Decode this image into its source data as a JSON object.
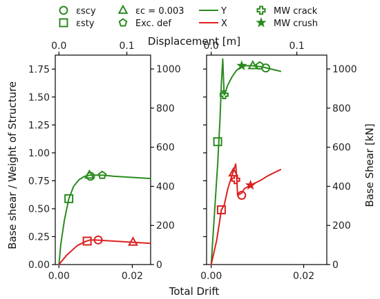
{
  "chart_data": {
    "type": "line",
    "colors": {
      "Y": "#2a8a1f",
      "X": "#dd1f1f",
      "axes": "#000000"
    },
    "legend": {
      "placement": "top",
      "items": [
        {
          "label": "εscy",
          "kind": "marker",
          "marker": "circle"
        },
        {
          "label": "εc = 0.003",
          "kind": "marker",
          "marker": "triangle"
        },
        {
          "label": "Y",
          "kind": "line",
          "series": "Y"
        },
        {
          "label": "MW crack",
          "kind": "marker",
          "marker": "plus"
        },
        {
          "label": "εsty",
          "kind": "marker",
          "marker": "square"
        },
        {
          "label": "Exc. def",
          "kind": "marker",
          "marker": "pentagon"
        },
        {
          "label": "X",
          "kind": "line",
          "series": "X"
        },
        {
          "label": "MW crush",
          "kind": "marker",
          "marker": "star"
        }
      ]
    },
    "shared": {
      "xlabel_bottom": "Total Drift",
      "xlabel_top": "Displacement [m]",
      "ylabel_left": "Base shear / Weight of Structure",
      "ylabel_right": "Base Shear [kN]"
    },
    "panels": [
      {
        "xlim": [
          -0.001,
          0.025
        ],
        "ylim": [
          0,
          1.875
        ],
        "x_ticks": [
          0.0,
          0.02
        ],
        "x_tick_labels": [
          "0.00",
          "0.02"
        ],
        "y_ticks": [
          0.0,
          0.25,
          0.5,
          0.75,
          1.0,
          1.25,
          1.5,
          1.75
        ],
        "y_tick_labels": [
          "0.00",
          "0.25",
          "0.50",
          "0.75",
          "1.00",
          "1.25",
          "1.50",
          "1.75"
        ],
        "top_xlim": [
          -0.0054,
          0.135
        ],
        "top_ticks": [
          0.0,
          0.1
        ],
        "top_tick_labels": [
          "0.0",
          "0.1"
        ],
        "right_ylim": [
          0,
          1071
        ],
        "right_ticks": [
          0,
          200,
          400,
          600,
          800,
          1000
        ],
        "right_tick_labels": [
          "0",
          "200",
          "400",
          "600",
          "800",
          "1000"
        ],
        "show_left_ticks": true,
        "show_right_label": false,
        "series": [
          {
            "name": "Y",
            "x": [
              0,
              0.0005,
              0.0015,
              0.0027,
              0.004,
              0.0055,
              0.007,
              0.0085,
              0.01,
              0.012,
              0.015,
              0.02,
              0.025
            ],
            "y": [
              0,
              0.18,
              0.4,
              0.59,
              0.7,
              0.76,
              0.79,
              0.8,
              0.8,
              0.8,
              0.79,
              0.78,
              0.77
            ]
          },
          {
            "name": "X",
            "x": [
              0,
              0.002,
              0.005,
              0.0075,
              0.0085,
              0.01,
              0.015,
              0.02,
              0.025
            ],
            "y": [
              0,
              0.08,
              0.17,
              0.21,
              0.22,
              0.22,
              0.21,
              0.2,
              0.19
            ]
          }
        ],
        "markers": [
          {
            "series": "Y",
            "marker": "square",
            "x": 0.0027,
            "y": 0.59
          },
          {
            "series": "Y",
            "marker": "triangle",
            "x": 0.0083,
            "y": 0.8
          },
          {
            "series": "Y",
            "marker": "circle",
            "x": 0.0086,
            "y": 0.79
          },
          {
            "series": "Y",
            "marker": "pentagon",
            "x": 0.0118,
            "y": 0.8
          },
          {
            "series": "X",
            "marker": "square",
            "x": 0.0077,
            "y": 0.21
          },
          {
            "series": "X",
            "marker": "circle",
            "x": 0.0107,
            "y": 0.22
          },
          {
            "series": "X",
            "marker": "triangle",
            "x": 0.0202,
            "y": 0.2
          }
        ]
      },
      {
        "xlim": [
          -0.001,
          0.025
        ],
        "ylim": [
          0,
          1.875
        ],
        "x_ticks": [
          0.0,
          0.02
        ],
        "x_tick_labels": [
          "0.00",
          "0.02"
        ],
        "y_ticks": [
          0.0,
          0.25,
          0.5,
          0.75,
          1.0,
          1.25,
          1.5,
          1.75
        ],
        "top_xlim": [
          -0.0054,
          0.135
        ],
        "top_ticks": [
          0.0,
          0.1
        ],
        "top_tick_labels": [
          "0.0",
          "0.1"
        ],
        "right_ylim": [
          0,
          1071
        ],
        "right_ticks": [
          0,
          200,
          400,
          600,
          800,
          1000
        ],
        "right_tick_labels": [
          "0",
          "200",
          "400",
          "600",
          "800",
          "1000"
        ],
        "show_left_ticks": false,
        "show_right_label": true,
        "series": [
          {
            "name": "Y",
            "x": [
              0,
              0.0008,
              0.0014,
              0.0019,
              0.0022,
              0.0025,
              0.0028,
              0.003,
              0.0035,
              0.0045,
              0.0055,
              0.0065,
              0.0075,
              0.009,
              0.011,
              0.013,
              0.015
            ],
            "y": [
              0,
              0.52,
              0.9,
              1.3,
              1.62,
              1.84,
              1.52,
              1.53,
              1.6,
              1.68,
              1.74,
              1.77,
              1.78,
              1.78,
              1.77,
              1.75,
              1.73
            ]
          },
          {
            "name": "X",
            "x": [
              0,
              0.0012,
              0.0022,
              0.0028,
              0.0036,
              0.0045,
              0.0053,
              0.0056,
              0.0057,
              0.0066,
              0.0072,
              0.0085,
              0.0105,
              0.0125,
              0.015
            ],
            "y": [
              0,
              0.22,
              0.49,
              0.53,
              0.68,
              0.8,
              0.9,
              0.72,
              0.62,
              0.64,
              0.68,
              0.71,
              0.75,
              0.8,
              0.85
            ]
          }
        ],
        "markers": [
          {
            "series": "Y",
            "marker": "square",
            "x": 0.0014,
            "y": 1.1
          },
          {
            "series": "Y",
            "marker": "plus",
            "x": 0.0028,
            "y": 1.52
          },
          {
            "series": "Y",
            "marker": "star",
            "x": 0.0066,
            "y": 1.78
          },
          {
            "series": "Y",
            "marker": "triangle",
            "x": 0.009,
            "y": 1.78
          },
          {
            "series": "Y",
            "marker": "pentagon",
            "x": 0.0105,
            "y": 1.78
          },
          {
            "series": "Y",
            "marker": "circle",
            "x": 0.0118,
            "y": 1.76
          },
          {
            "series": "X",
            "marker": "square",
            "x": 0.0022,
            "y": 0.49
          },
          {
            "series": "X",
            "marker": "triangle",
            "x": 0.0048,
            "y": 0.82
          },
          {
            "series": "X",
            "marker": "plus",
            "x": 0.0053,
            "y": 0.76
          },
          {
            "series": "X",
            "marker": "circle",
            "x": 0.0066,
            "y": 0.62
          },
          {
            "series": "X",
            "marker": "star",
            "x": 0.0085,
            "y": 0.71
          }
        ]
      }
    ]
  }
}
